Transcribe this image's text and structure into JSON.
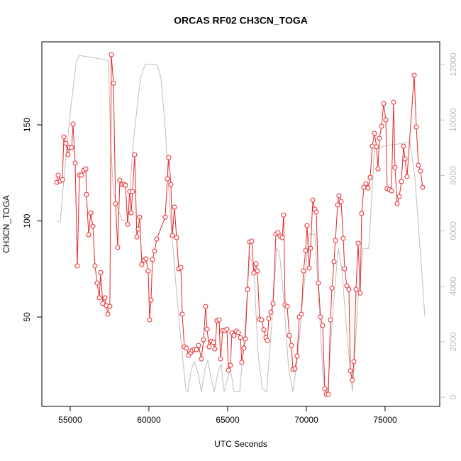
{
  "chart_data": {
    "type": "line",
    "title": "ORCAS RF02 CH3CN_TOGA",
    "x_label": "UTC Seconds",
    "y_label": "CH3CN_TOGA",
    "xlim": [
      53200,
      78470
    ],
    "xticks": [
      55000,
      60000,
      65000,
      70000,
      75000
    ],
    "ylim": [
      3.5,
      193.2
    ],
    "yticks": [
      50,
      100,
      150
    ],
    "y2lim": [
      -330,
      12820
    ],
    "y2ticks": [
      0,
      2000,
      4000,
      6000,
      8000,
      10000,
      12000
    ],
    "y2_color": "#bebebe",
    "series": [
      {
        "color": "#bebebe",
        "axis": "y2",
        "markers": false,
        "x": [
          54146,
          54371,
          54686,
          55047,
          55407,
          55587,
          57297,
          57432,
          57567,
          57747,
          57973,
          58288,
          58648,
          59009,
          59459,
          59774,
          60540,
          60765,
          61036,
          61351,
          61712,
          62027,
          62342,
          62477,
          62703,
          62883,
          63108,
          63333,
          63558,
          63738,
          63919,
          64144,
          64414,
          64595,
          64775,
          64955,
          65180,
          65405,
          65766,
          66081,
          66396,
          66667,
          66937,
          67207,
          67477,
          67793,
          68108,
          68288,
          68558,
          68874,
          69144,
          69459,
          69775,
          70180,
          70540,
          70811,
          71081,
          71351,
          71712,
          72027,
          72252,
          72612,
          72927,
          73288,
          73603,
          73964,
          74324,
          75090,
          75766,
          76577,
          76892,
          77252,
          77523
        ],
        "values": [
          6340,
          6340,
          8440,
          10490,
          12150,
          12330,
          12170,
          12070,
          9210,
          7420,
          6900,
          6390,
          6390,
          9210,
          11510,
          12020,
          12000,
          11510,
          9720,
          6650,
          4090,
          2050,
          310,
          200,
          1020,
          1280,
          900,
          200,
          1020,
          1330,
          770,
          200,
          970,
          1180,
          200,
          610,
          1020,
          200,
          200,
          2300,
          5120,
          4600,
          1530,
          310,
          200,
          2560,
          5370,
          5240,
          3580,
          1020,
          200,
          1530,
          3580,
          5880,
          5880,
          3320,
          510,
          200,
          3320,
          5370,
          4600,
          2050,
          200,
          3580,
          5370,
          5370,
          8950,
          9080,
          9130,
          9210,
          7930,
          5120,
          2940
        ]
      },
      {
        "color": "#e8272a",
        "axis": "y",
        "markers": true,
        "x": [
          54146,
          54236,
          54371,
          54506,
          54596,
          54731,
          54866,
          54956,
          55092,
          55182,
          55317,
          55452,
          55587,
          55722,
          55857,
          55992,
          56037,
          56172,
          56307,
          56442,
          56577,
          56712,
          56847,
          56937,
          57072,
          57207,
          57297,
          57387,
          57522,
          57612,
          57747,
          57883,
          58018,
          58153,
          58288,
          58423,
          58513,
          58648,
          58783,
          58873,
          58963,
          59098,
          59234,
          59324,
          59414,
          59549,
          59684,
          59819,
          59954,
          60044,
          60134,
          60224,
          60359,
          60495,
          61036,
          61171,
          61261,
          61396,
          61486,
          61622,
          61757,
          61892,
          62027,
          62117,
          62252,
          62387,
          62522,
          62658,
          62748,
          62883,
          63018,
          63153,
          63333,
          63468,
          63603,
          63694,
          63829,
          63964,
          64099,
          64189,
          64324,
          64459,
          64549,
          64685,
          64820,
          64955,
          65045,
          65180,
          65270,
          65405,
          65540,
          65676,
          65811,
          65901,
          66036,
          66126,
          66261,
          66396,
          66532,
          66667,
          66802,
          66892,
          67027,
          67162,
          67297,
          67432,
          67522,
          67613,
          67748,
          67883,
          68063,
          68198,
          68333,
          68468,
          68558,
          68648,
          68784,
          68919,
          69054,
          69144,
          69279,
          69414,
          69549,
          69685,
          69820,
          69955,
          70045,
          70180,
          70270,
          70405,
          70540,
          70630,
          70766,
          70901,
          71036,
          71171,
          71261,
          71396,
          71531,
          71622,
          71757,
          71847,
          71982,
          72072,
          72207,
          72342,
          72432,
          72567,
          72702,
          72792,
          72927,
          73018,
          73153,
          73288,
          73423,
          73513,
          73648,
          73783,
          73919,
          74054,
          74189,
          74324,
          74459,
          74549,
          74639,
          74775,
          74910,
          75045,
          75135,
          75270,
          75405,
          75540,
          75630,
          75766,
          75901,
          76036,
          76171,
          76261,
          76396,
          76847,
          76982,
          77117,
          77252,
          77387
        ],
        "values": [
          120.1,
          123.8,
          120.8,
          121.5,
          143.7,
          140.4,
          134.5,
          138.2,
          138.2,
          150.4,
          130.1,
          76.6,
          123.8,
          123.8,
          126.4,
          127.1,
          113.8,
          92.8,
          104.2,
          97.2,
          76.6,
          67.7,
          60.0,
          73.2,
          57.0,
          60.0,
          55.9,
          51.5,
          55.5,
          186.5,
          171.7,
          109.0,
          86.2,
          121.2,
          119.0,
          119.0,
          118.6,
          98.3,
          115.3,
          104.2,
          115.3,
          134.5,
          91.7,
          95.8,
          102.0,
          77.3,
          79.5,
          80.3,
          74.0,
          48.5,
          58.8,
          79.9,
          84.3,
          90.6,
          102.0,
          121.9,
          133.0,
          119.0,
          92.4,
          107.2,
          91.3,
          75.1,
          75.8,
          51.5,
          34.5,
          33.8,
          30.1,
          31.5,
          32.6,
          33.0,
          33.0,
          35.2,
          28.2,
          38.2,
          55.5,
          43.7,
          34.5,
          37.4,
          36.7,
          33.4,
          48.1,
          48.5,
          28.2,
          43.0,
          43.0,
          43.7,
          22.3,
          24.9,
          41.7,
          40.4,
          42.6,
          41.9,
          39.3,
          26.4,
          33.8,
          38.6,
          64.4,
          89.1,
          89.5,
          72.9,
          77.7,
          74.0,
          48.9,
          48.5,
          43.4,
          39.3,
          37.8,
          49.2,
          52.5,
          57.0,
          93.2,
          93.9,
          92.1,
          91.3,
          103.1,
          56.3,
          55.5,
          40.4,
          35.2,
          22.7,
          23.1,
          29.7,
          50.0,
          51.5,
          74.0,
          84.7,
          97.6,
          75.5,
          85.8,
          110.9,
          106.1,
          104.6,
          67.7,
          50.0,
          45.6,
          12.7,
          9.8,
          9.8,
          48.5,
          65.1,
          78.8,
          89.8,
          108.3,
          113.1,
          110.1,
          90.9,
          75.1,
          66.2,
          64.4,
          22.0,
          17.2,
          26.8,
          64.4,
          88.4,
          62.5,
          103.9,
          117.5,
          119.4,
          117.1,
          122.7,
          138.9,
          145.6,
          138.6,
          127.1,
          143.0,
          149.3,
          161.1,
          152.6,
          116.8,
          116.4,
          115.7,
          161.8,
          127.8,
          109.0,
          112.7,
          120.5,
          138.9,
          132.3,
          123.1,
          175.8,
          148.9,
          129.0,
          126.0,
          117.5
        ]
      }
    ]
  }
}
